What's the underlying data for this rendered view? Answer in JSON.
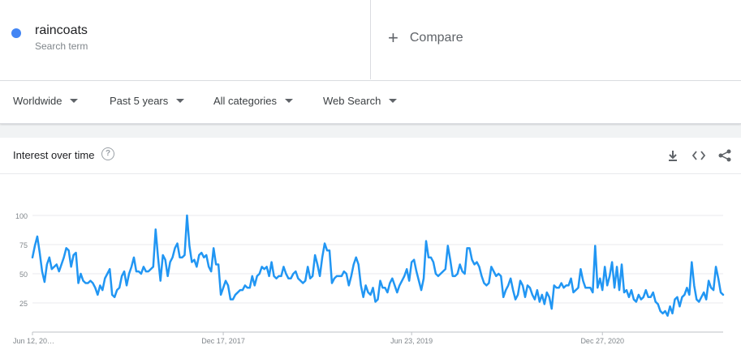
{
  "search_term": {
    "name": "raincoats",
    "subtitle": "Search term",
    "color": "#4285f4"
  },
  "compare": {
    "label": "Compare"
  },
  "filters": {
    "region": "Worldwide",
    "period": "Past 5 years",
    "category": "All categories",
    "property": "Web Search"
  },
  "card": {
    "title": "Interest over time",
    "actions": [
      "download-icon",
      "embed-code-icon",
      "share-icon"
    ]
  },
  "chart_data": {
    "type": "line",
    "ylim": [
      0,
      100
    ],
    "y_ticks": [
      "100",
      "75",
      "50",
      "25"
    ],
    "y_tick_values": [
      100,
      75,
      50,
      25
    ],
    "x_tick_labels": [
      "Jun 12, 20…",
      "Dec 17, 2017",
      "Jun 23, 2019",
      "Dec 27, 2020"
    ],
    "x_tick_index": [
      0,
      79,
      157,
      236
    ],
    "line_color": "#2196f3",
    "grid": true,
    "series": [
      {
        "values": [
          64,
          74,
          82,
          68,
          52,
          43,
          58,
          64,
          54,
          56,
          58,
          52,
          58,
          64,
          72,
          70,
          56,
          66,
          68,
          42,
          50,
          44,
          42,
          42,
          44,
          42,
          38,
          32,
          40,
          36,
          46,
          50,
          54,
          32,
          30,
          36,
          38,
          48,
          52,
          40,
          50,
          56,
          64,
          52,
          52,
          50,
          56,
          52,
          52,
          54,
          56,
          88,
          64,
          44,
          66,
          62,
          48,
          60,
          64,
          72,
          76,
          64,
          64,
          66,
          100,
          74,
          60,
          62,
          56,
          66,
          68,
          64,
          66,
          56,
          52,
          72,
          58,
          58,
          32,
          38,
          44,
          40,
          28,
          28,
          32,
          34,
          36,
          36,
          40,
          38,
          38,
          48,
          40,
          48,
          50,
          56,
          54,
          56,
          48,
          60,
          48,
          46,
          48,
          48,
          56,
          50,
          46,
          46,
          50,
          52,
          46,
          44,
          42,
          44,
          56,
          46,
          48,
          66,
          58,
          48,
          64,
          76,
          70,
          70,
          42,
          46,
          48,
          48,
          48,
          52,
          50,
          40,
          48,
          58,
          64,
          58,
          40,
          30,
          40,
          34,
          32,
          38,
          26,
          28,
          44,
          38,
          38,
          34,
          42,
          46,
          40,
          34,
          40,
          44,
          48,
          54,
          44,
          60,
          62,
          52,
          44,
          36,
          46,
          78,
          64,
          64,
          60,
          50,
          48,
          50,
          52,
          54,
          74,
          62,
          48,
          48,
          50,
          58,
          52,
          50,
          72,
          72,
          62,
          58,
          60,
          56,
          48,
          42,
          40,
          42,
          56,
          52,
          48,
          50,
          48,
          30,
          36,
          40,
          46,
          36,
          28,
          32,
          44,
          40,
          30,
          40,
          38,
          32,
          28,
          36,
          26,
          32,
          24,
          34,
          30,
          20,
          40,
          38,
          38,
          42,
          38,
          40,
          40,
          46,
          34,
          36,
          38,
          54,
          44,
          38,
          38,
          38,
          34,
          74,
          38,
          46,
          36,
          56,
          40,
          48,
          60,
          38,
          56,
          36,
          58,
          34,
          36,
          30,
          36,
          28,
          26,
          32,
          28,
          30,
          36,
          30,
          30,
          34,
          26,
          24,
          18,
          16,
          18,
          14,
          22,
          16,
          28,
          30,
          22,
          30,
          32,
          38,
          32,
          60,
          40,
          28,
          26,
          30,
          34,
          28,
          44,
          38,
          36,
          56,
          46,
          34,
          32
        ]
      }
    ]
  }
}
